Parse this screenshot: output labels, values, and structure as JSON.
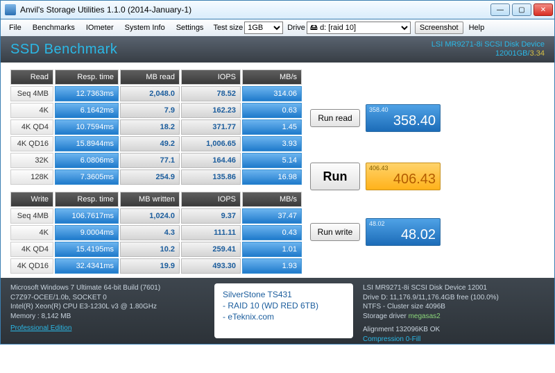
{
  "window": {
    "title": "Anvil's Storage Utilities 1.1.0 (2014-January-1)"
  },
  "menu": {
    "file": "File",
    "benchmarks": "Benchmarks",
    "iometer": "IOmeter",
    "system_info": "System Info",
    "settings": "Settings",
    "test_size_lbl": "Test size",
    "test_size_val": "1GB",
    "drive_lbl": "Drive",
    "drive_val": "🖴 d: [raid 10]",
    "screenshot": "Screenshot",
    "help": "Help"
  },
  "header": {
    "title": "SSD Benchmark",
    "device": "LSI MR9271-8i SCSI Disk Device",
    "size_blue": "12001GB/",
    "size_yellow": "3.34"
  },
  "read": {
    "cols": [
      "Read",
      "Resp. time",
      "MB read",
      "IOPS",
      "MB/s"
    ],
    "rows": [
      {
        "label": "Seq 4MB",
        "rt": "12.7363ms",
        "mb": "2,048.0",
        "iops": "78.52",
        "mbs": "314.06"
      },
      {
        "label": "4K",
        "rt": "6.1642ms",
        "mb": "7.9",
        "iops": "162.23",
        "mbs": "0.63"
      },
      {
        "label": "4K QD4",
        "rt": "10.7594ms",
        "mb": "18.2",
        "iops": "371.77",
        "mbs": "1.45"
      },
      {
        "label": "4K QD16",
        "rt": "15.8944ms",
        "mb": "49.2",
        "iops": "1,006.65",
        "mbs": "3.93"
      },
      {
        "label": "32K",
        "rt": "6.0806ms",
        "mb": "77.1",
        "iops": "164.46",
        "mbs": "5.14"
      },
      {
        "label": "128K",
        "rt": "7.3605ms",
        "mb": "254.9",
        "iops": "135.86",
        "mbs": "16.98"
      }
    ]
  },
  "write": {
    "cols": [
      "Write",
      "Resp. time",
      "MB written",
      "IOPS",
      "MB/s"
    ],
    "rows": [
      {
        "label": "Seq 4MB",
        "rt": "106.7617ms",
        "mb": "1,024.0",
        "iops": "9.37",
        "mbs": "37.47"
      },
      {
        "label": "4K",
        "rt": "9.0004ms",
        "mb": "4.3",
        "iops": "111.11",
        "mbs": "0.43"
      },
      {
        "label": "4K QD4",
        "rt": "15.4195ms",
        "mb": "10.2",
        "iops": "259.41",
        "mbs": "1.01"
      },
      {
        "label": "4K QD16",
        "rt": "32.4341ms",
        "mb": "19.9",
        "iops": "493.30",
        "mbs": "1.93"
      }
    ]
  },
  "buttons": {
    "run_read": "Run read",
    "run": "Run",
    "run_write": "Run write"
  },
  "scores": {
    "read_tag": "358.40",
    "read": "358.40",
    "total_tag": "406.43",
    "total": "406.43",
    "write_tag": "48.02",
    "write": "48.02"
  },
  "footer": {
    "os": "Microsoft Windows 7 Ultimate  64-bit Build (7601)",
    "mb": "C7Z97-OCEE/1.0b, SOCKET 0",
    "cpu": "Intel(R) Xeon(R) CPU E3-1230L v3 @ 1.80GHz",
    "mem": "Memory : 8,142 MB",
    "pro": "Professional Edition",
    "center1": "SilverStone TS431",
    "center2": "- RAID 10 (WD RED 6TB)",
    "center3": "- eTeknix.com",
    "dev": "LSI MR9271-8i SCSI Disk Device 12001",
    "drv": "Drive D: 11,176.9/11,176.4GB free (100.0%)",
    "ntfs": "NTFS - Cluster size 4096B",
    "sd_lbl": "Storage driver  ",
    "sd_val": "megasas2",
    "align": "Alignment 132096KB OK",
    "comp": "Compression 0-Fill"
  }
}
